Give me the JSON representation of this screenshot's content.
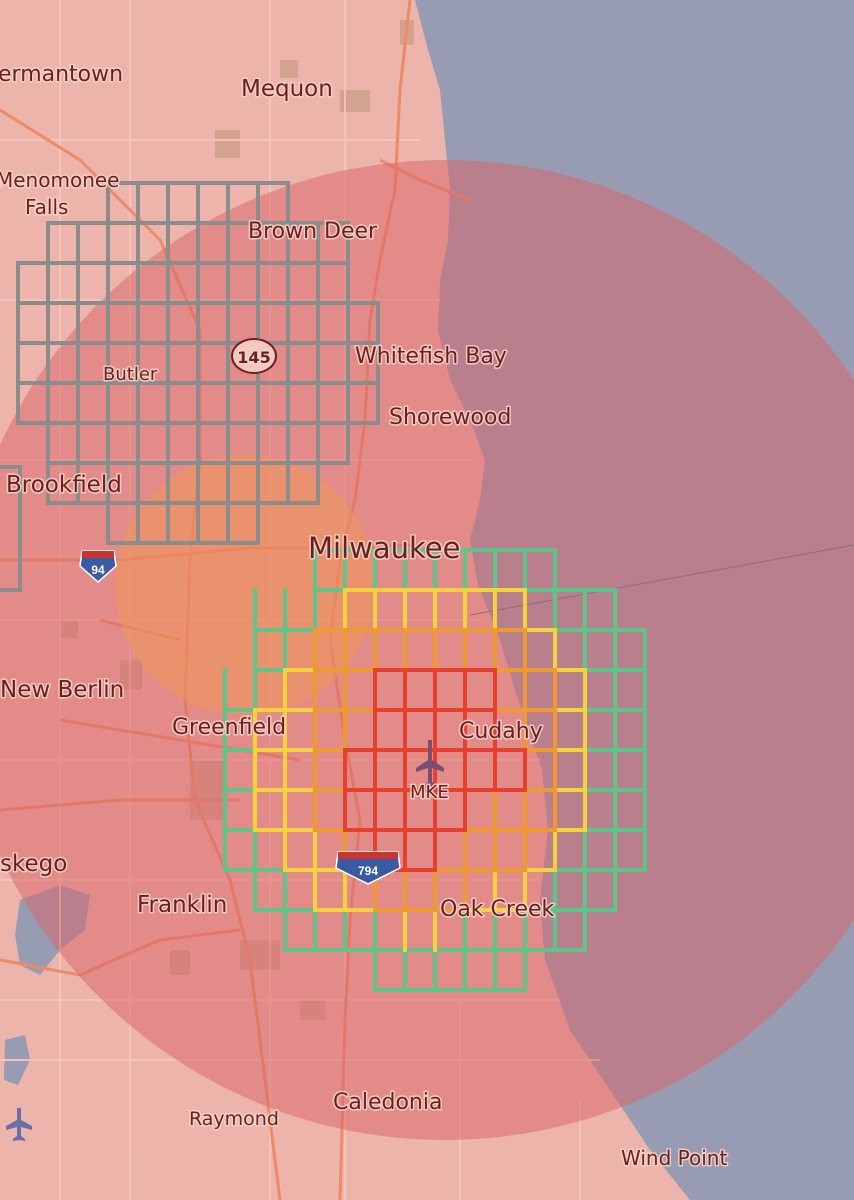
{
  "map": {
    "colors": {
      "land": "#ecb4ab",
      "water": "#979cb2",
      "major_road": "#ef8a67",
      "minor_road": "#f5c6bd",
      "urban_patch": "#c4987f",
      "circle_large": "#d8666a",
      "circle_small": "#f29a52",
      "grid_gray": "#8c8c8c",
      "grid_green": "#5ec489",
      "grid_yellow": "#f3d23e",
      "grid_orange": "#ee9a32",
      "grid_red": "#e5412e"
    },
    "labels": {
      "germantown": "ermantown",
      "mequon": "Mequon",
      "menomonee_falls_1": "Menomonee",
      "menomonee_falls_2": "Falls",
      "brown_deer": "Brown Deer",
      "whitefish_bay": "Whitefish Bay",
      "shorewood": "Shorewood",
      "butler": "Butler",
      "brookfield": "Brookfield",
      "milwaukee": "Milwaukee",
      "new_berlin": "New Berlin",
      "greenfield": "Greenfield",
      "cudahy": "Cudahy",
      "mke": "MKE",
      "muskego": "skego",
      "franklin": "Franklin",
      "oak_creek": "Oak Creek",
      "caledonia": "Caledonia",
      "raymond": "Raymond",
      "wind_point": "Wind Point"
    },
    "shields": {
      "route_145": "145",
      "interstate_94": "94",
      "interstate_794": "794"
    }
  }
}
